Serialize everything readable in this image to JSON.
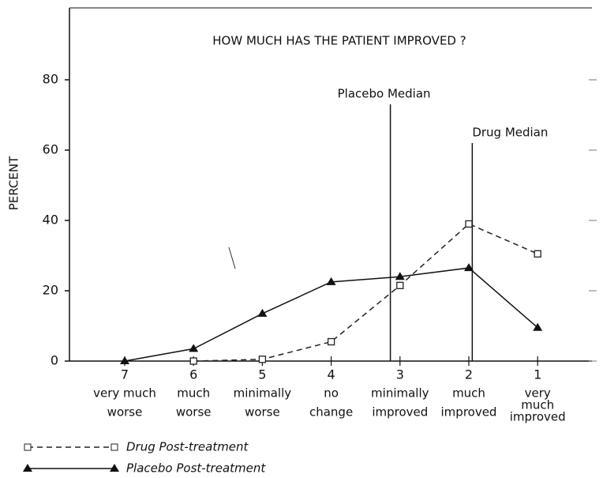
{
  "chart_data": {
    "type": "line",
    "title": "HOW MUCH HAS THE PATIENT IMPROVED ?",
    "ylabel": "PERCENT",
    "categories": [
      "7",
      "6",
      "5",
      "4",
      "3",
      "2",
      "1"
    ],
    "category_labels": [
      [
        "very much",
        "worse"
      ],
      [
        "much",
        "worse"
      ],
      [
        "minimally",
        "worse"
      ],
      [
        "no",
        "change"
      ],
      [
        "minimally",
        "improved"
      ],
      [
        "much",
        "improved"
      ],
      [
        "very",
        "much",
        "improved"
      ]
    ],
    "series": [
      {
        "name": "Drug Post-treatment",
        "color": "#222",
        "dash": true,
        "marker": "square",
        "values": [
          null,
          0,
          0.5,
          5.5,
          21.5,
          39,
          30.5
        ]
      },
      {
        "name": "Placebo Post-treatment",
        "color": "#111",
        "dash": false,
        "marker": "triangle",
        "values": [
          0,
          3.5,
          13.5,
          22.5,
          24,
          26.5,
          9.5
        ]
      }
    ],
    "medians": [
      {
        "label": "Placebo Median",
        "x": 3.14,
        "top": 73
      },
      {
        "label": "Drug Median",
        "x": 1.95,
        "top": 62
      }
    ],
    "ylim": [
      0,
      100
    ],
    "yticks": [
      0,
      20,
      40,
      60,
      80
    ],
    "legend": "bottom-left"
  }
}
